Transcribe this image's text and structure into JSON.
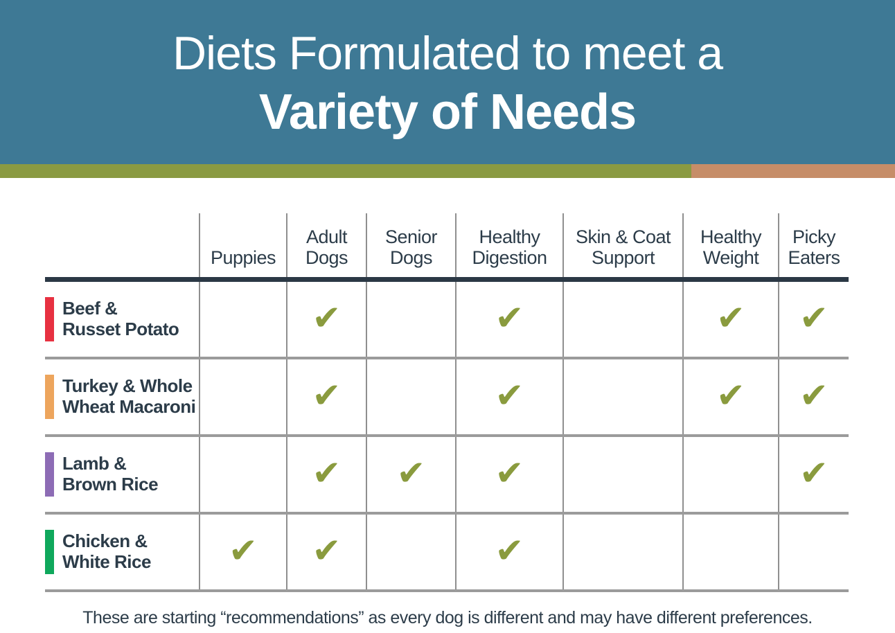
{
  "banner": {
    "title_line1": "Diets Formulated to meet a",
    "title_line2": "Variety of Needs"
  },
  "colors": {
    "banner_bg": "#3e7995",
    "stripe_green": "#8a9a42",
    "stripe_salmon": "#c68d68",
    "text_dark": "#2c3c49",
    "thick_line": "#2b3845",
    "grid_line": "#8f8f8f",
    "row_separator": "#9b9b9b",
    "check": "#8a9b3e"
  },
  "table": {
    "check_glyph": "✔",
    "columns": [
      {
        "lines": [
          "Puppies"
        ]
      },
      {
        "lines": [
          "Adult",
          "Dogs"
        ]
      },
      {
        "lines": [
          "Senior",
          "Dogs"
        ]
      },
      {
        "lines": [
          "Healthy",
          "Digestion"
        ]
      },
      {
        "lines": [
          "Skin & Coat",
          "Support"
        ]
      },
      {
        "lines": [
          "Healthy",
          "Weight"
        ]
      },
      {
        "lines": [
          "Picky",
          "Eaters"
        ]
      }
    ],
    "rows": [
      {
        "lines": [
          "Beef &",
          "Russet Potato"
        ],
        "bar_color": "#e73141",
        "checks": [
          0,
          1,
          0,
          1,
          0,
          1,
          1
        ]
      },
      {
        "lines": [
          "Turkey & Whole",
          "Wheat Macaroni"
        ],
        "bar_color": "#eda55d",
        "checks": [
          0,
          1,
          0,
          1,
          0,
          1,
          1
        ]
      },
      {
        "lines": [
          "Lamb &",
          "Brown Rice"
        ],
        "bar_color": "#8d6cb5",
        "checks": [
          0,
          1,
          1,
          1,
          0,
          0,
          1
        ]
      },
      {
        "lines": [
          "Chicken &",
          "White Rice"
        ],
        "bar_color": "#0fa85c",
        "checks": [
          1,
          1,
          0,
          1,
          0,
          0,
          0
        ]
      }
    ]
  },
  "footer": {
    "note": "These are starting “recommendations” as every dog is different and may have different preferences."
  },
  "chart_data": {
    "type": "table",
    "title": "Diets Formulated to meet a Variety of Needs",
    "columns": [
      "Puppies",
      "Adult Dogs",
      "Senior Dogs",
      "Healthy Digestion",
      "Skin & Coat Support",
      "Healthy Weight",
      "Picky Eaters"
    ],
    "rows": [
      "Beef & Russet Potato",
      "Turkey & Whole Wheat Macaroni",
      "Lamb & Brown Rice",
      "Chicken & White Rice"
    ],
    "matrix": [
      [
        0,
        1,
        0,
        1,
        0,
        1,
        1
      ],
      [
        0,
        1,
        0,
        1,
        0,
        1,
        1
      ],
      [
        0,
        1,
        1,
        1,
        0,
        0,
        1
      ],
      [
        1,
        1,
        0,
        1,
        0,
        0,
        0
      ]
    ],
    "legend": "1 = diet recommended (checkmark shown), 0 = not marked",
    "note": "These are starting “recommendations” as every dog is different and may have different preferences."
  }
}
